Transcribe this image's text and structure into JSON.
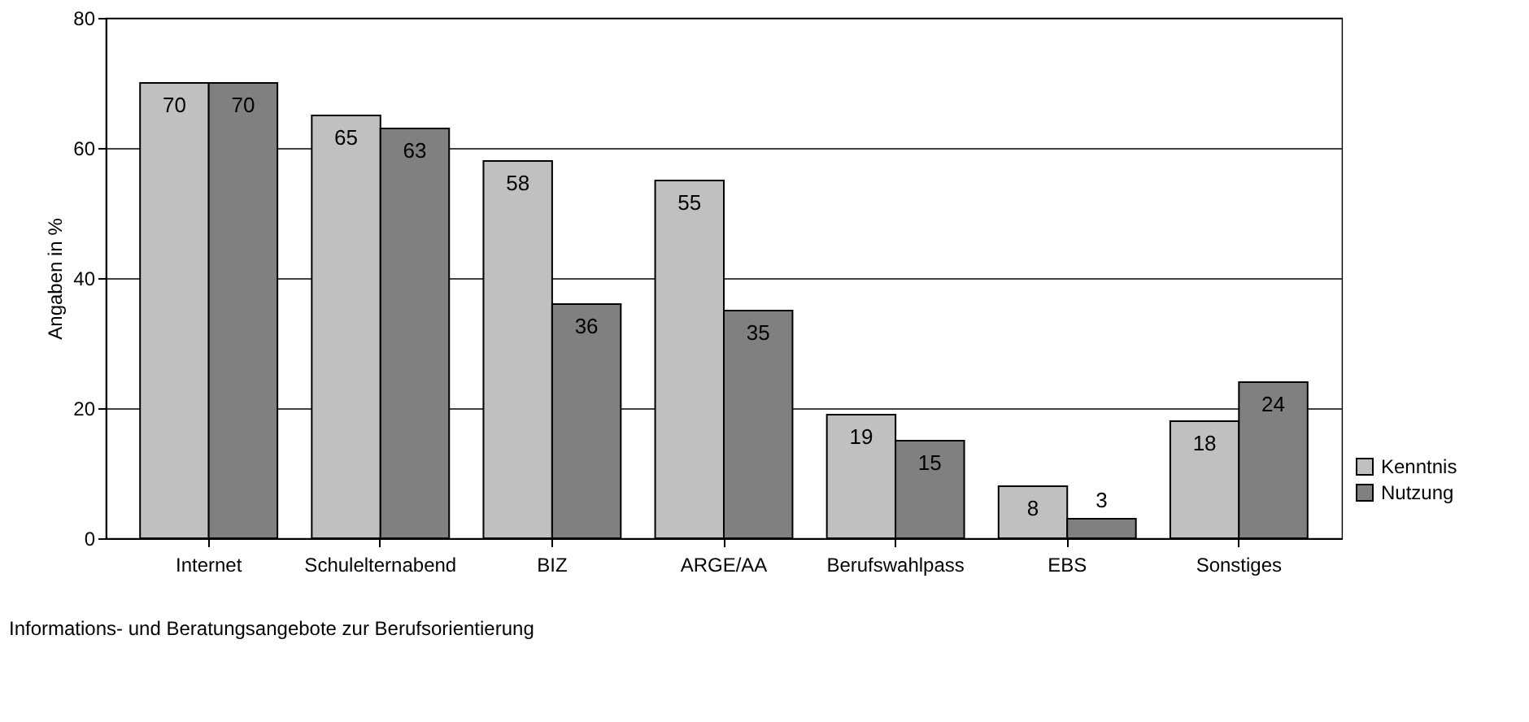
{
  "chart_data": {
    "type": "bar",
    "xlabel": "Informations- und Beratungsangebote zur Berufsorientierung",
    "ylabel": "Angaben in %",
    "categories": [
      "Internet",
      "Schulelternabend",
      "BIZ",
      "ARGE/AA",
      "Berufswahlpass",
      "EBS",
      "Sonstiges"
    ],
    "series": [
      {
        "name": "Kenntnis",
        "color": "#c0c0c0",
        "values": [
          70,
          65,
          58,
          55,
          19,
          8,
          18
        ]
      },
      {
        "name": "Nutzung",
        "color": "#808080",
        "values": [
          70,
          63,
          36,
          35,
          15,
          3,
          24
        ]
      }
    ],
    "ylim": [
      0,
      80
    ],
    "yticks": [
      0,
      20,
      40,
      60,
      80
    ],
    "grid": "y",
    "legend": "bottom right",
    "data_labels": true
  }
}
